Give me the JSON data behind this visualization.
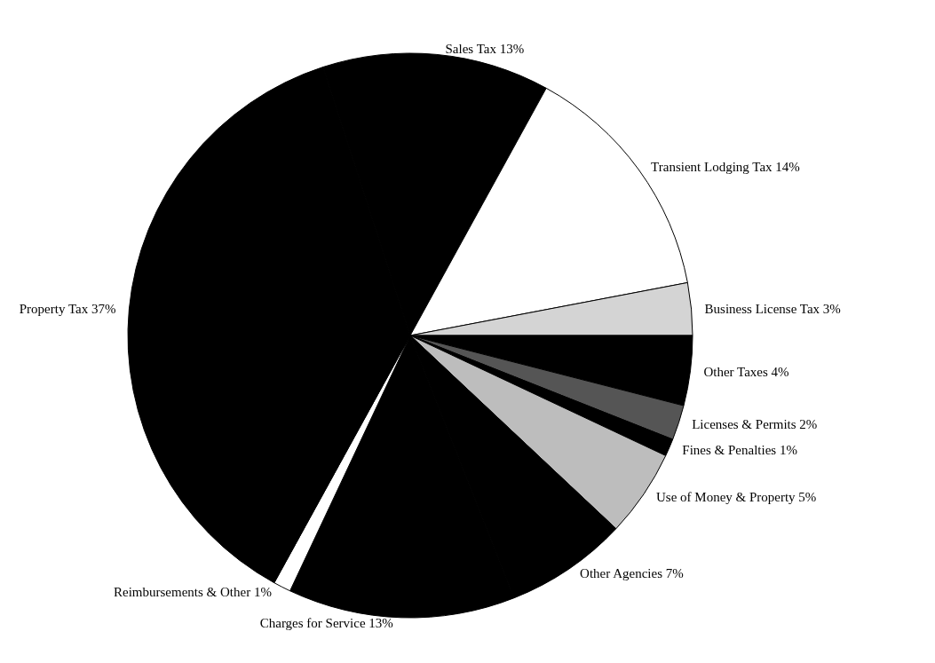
{
  "chart_data": {
    "type": "pie",
    "categories": [
      "Sales Tax",
      "Transient Lodging Tax",
      "Business License Tax",
      "Other Taxes",
      "Licenses & Permits",
      "Fines & Penalties",
      "Use of Money & Property",
      "Other Agencies",
      "Charges for Service",
      "Reimbursements & Other",
      "Property Tax"
    ],
    "values": [
      13,
      14,
      3,
      4,
      2,
      1,
      5,
      7,
      13,
      1,
      37
    ],
    "colors": [
      "#000000",
      "#ffffff",
      "#d4d4d4",
      "#000000",
      "#555555",
      "#000000",
      "#bdbdbd",
      "#000000",
      "#000000",
      "#ffffff",
      "#000000"
    ],
    "value_labels": [
      "13%",
      "14%",
      "3%",
      "4%",
      "2%",
      "1%",
      "5%",
      "7%",
      "13%",
      "1%",
      "37%"
    ],
    "legend": false
  }
}
